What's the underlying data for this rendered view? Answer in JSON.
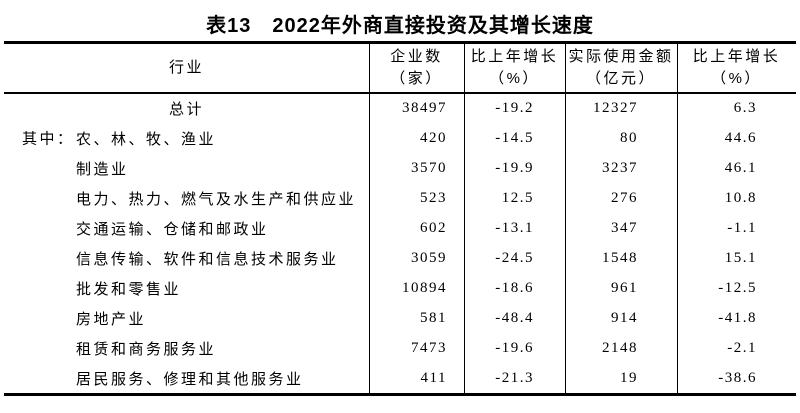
{
  "page": {
    "title": "表13　2022年外商直接投资及其增长速度"
  },
  "table": {
    "header": {
      "industry": "行业",
      "enterprises_line1": "企业数",
      "enterprises_line2": "（家）",
      "growth1_line1": "比上年增长",
      "growth1_line2": "（%）",
      "amount_line1": "实际使用金额",
      "amount_line2": "（亿元）",
      "growth2_line1": "比上年增长",
      "growth2_line2": "（%）"
    },
    "rows": [
      {
        "prefix": "",
        "label": "总计",
        "enterprises": "38497",
        "growth1": "-19.2",
        "amount": "12327",
        "growth2": "6.3"
      },
      {
        "prefix": "其中：",
        "label": "农、林、牧、渔业",
        "enterprises": "420",
        "growth1": "-14.5",
        "amount": "80",
        "growth2": "44.6"
      },
      {
        "prefix": "",
        "label": "制造业",
        "enterprises": "3570",
        "growth1": "-19.9",
        "amount": "3237",
        "growth2": "46.1"
      },
      {
        "prefix": "",
        "label": "电力、热力、燃气及水生产和供应业",
        "enterprises": "523",
        "growth1": "12.5",
        "amount": "276",
        "growth2": "10.8"
      },
      {
        "prefix": "",
        "label": "交通运输、仓储和邮政业",
        "enterprises": "602",
        "growth1": "-13.1",
        "amount": "347",
        "growth2": "-1.1"
      },
      {
        "prefix": "",
        "label": "信息传输、软件和信息技术服务业",
        "enterprises": "3059",
        "growth1": "-24.5",
        "amount": "1548",
        "growth2": "15.1"
      },
      {
        "prefix": "",
        "label": "批发和零售业",
        "enterprises": "10894",
        "growth1": "-18.6",
        "amount": "961",
        "growth2": "-12.5"
      },
      {
        "prefix": "",
        "label": "房地产业",
        "enterprises": "581",
        "growth1": "-48.4",
        "amount": "914",
        "growth2": "-41.8"
      },
      {
        "prefix": "",
        "label": "租赁和商务服务业",
        "enterprises": "7473",
        "growth1": "-19.6",
        "amount": "2148",
        "growth2": "-2.1"
      },
      {
        "prefix": "",
        "label": "居民服务、修理和其他服务业",
        "enterprises": "411",
        "growth1": "-21.3",
        "amount": "19",
        "growth2": "-38.6"
      }
    ]
  }
}
